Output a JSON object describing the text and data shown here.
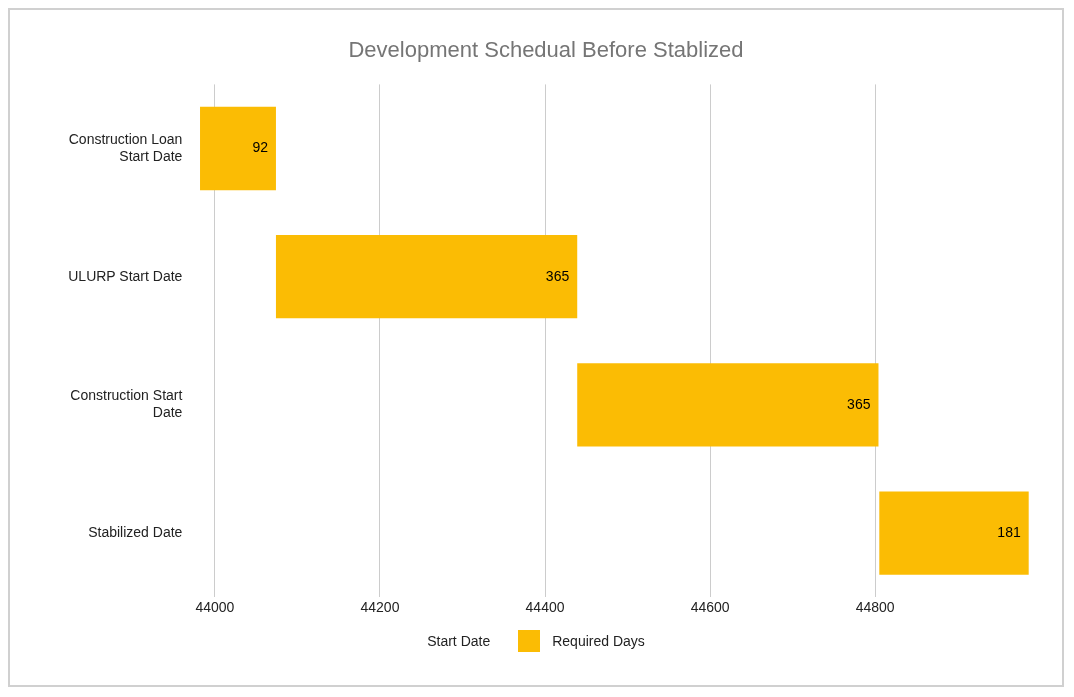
{
  "chart_data": {
    "type": "bar",
    "orientation": "horizontal",
    "title": "Development Schedual Before Stablized",
    "categories": [
      "Construction Loan Start Date",
      "ULURP Start Date",
      "Construction Start Date",
      "Stabilized Date"
    ],
    "series": [
      {
        "name": "Required Days",
        "color": "#fbbc04",
        "values": [
          92,
          365,
          365,
          181
        ],
        "base": [
          43982,
          44074,
          44439,
          44805
        ]
      }
    ],
    "xlim": [
      43980,
      44990
    ],
    "xticks": [
      44000,
      44200,
      44400,
      44600,
      44800
    ],
    "grid": "x",
    "legend": "bottom",
    "legend_title": "Start Date",
    "data_labels": true
  }
}
